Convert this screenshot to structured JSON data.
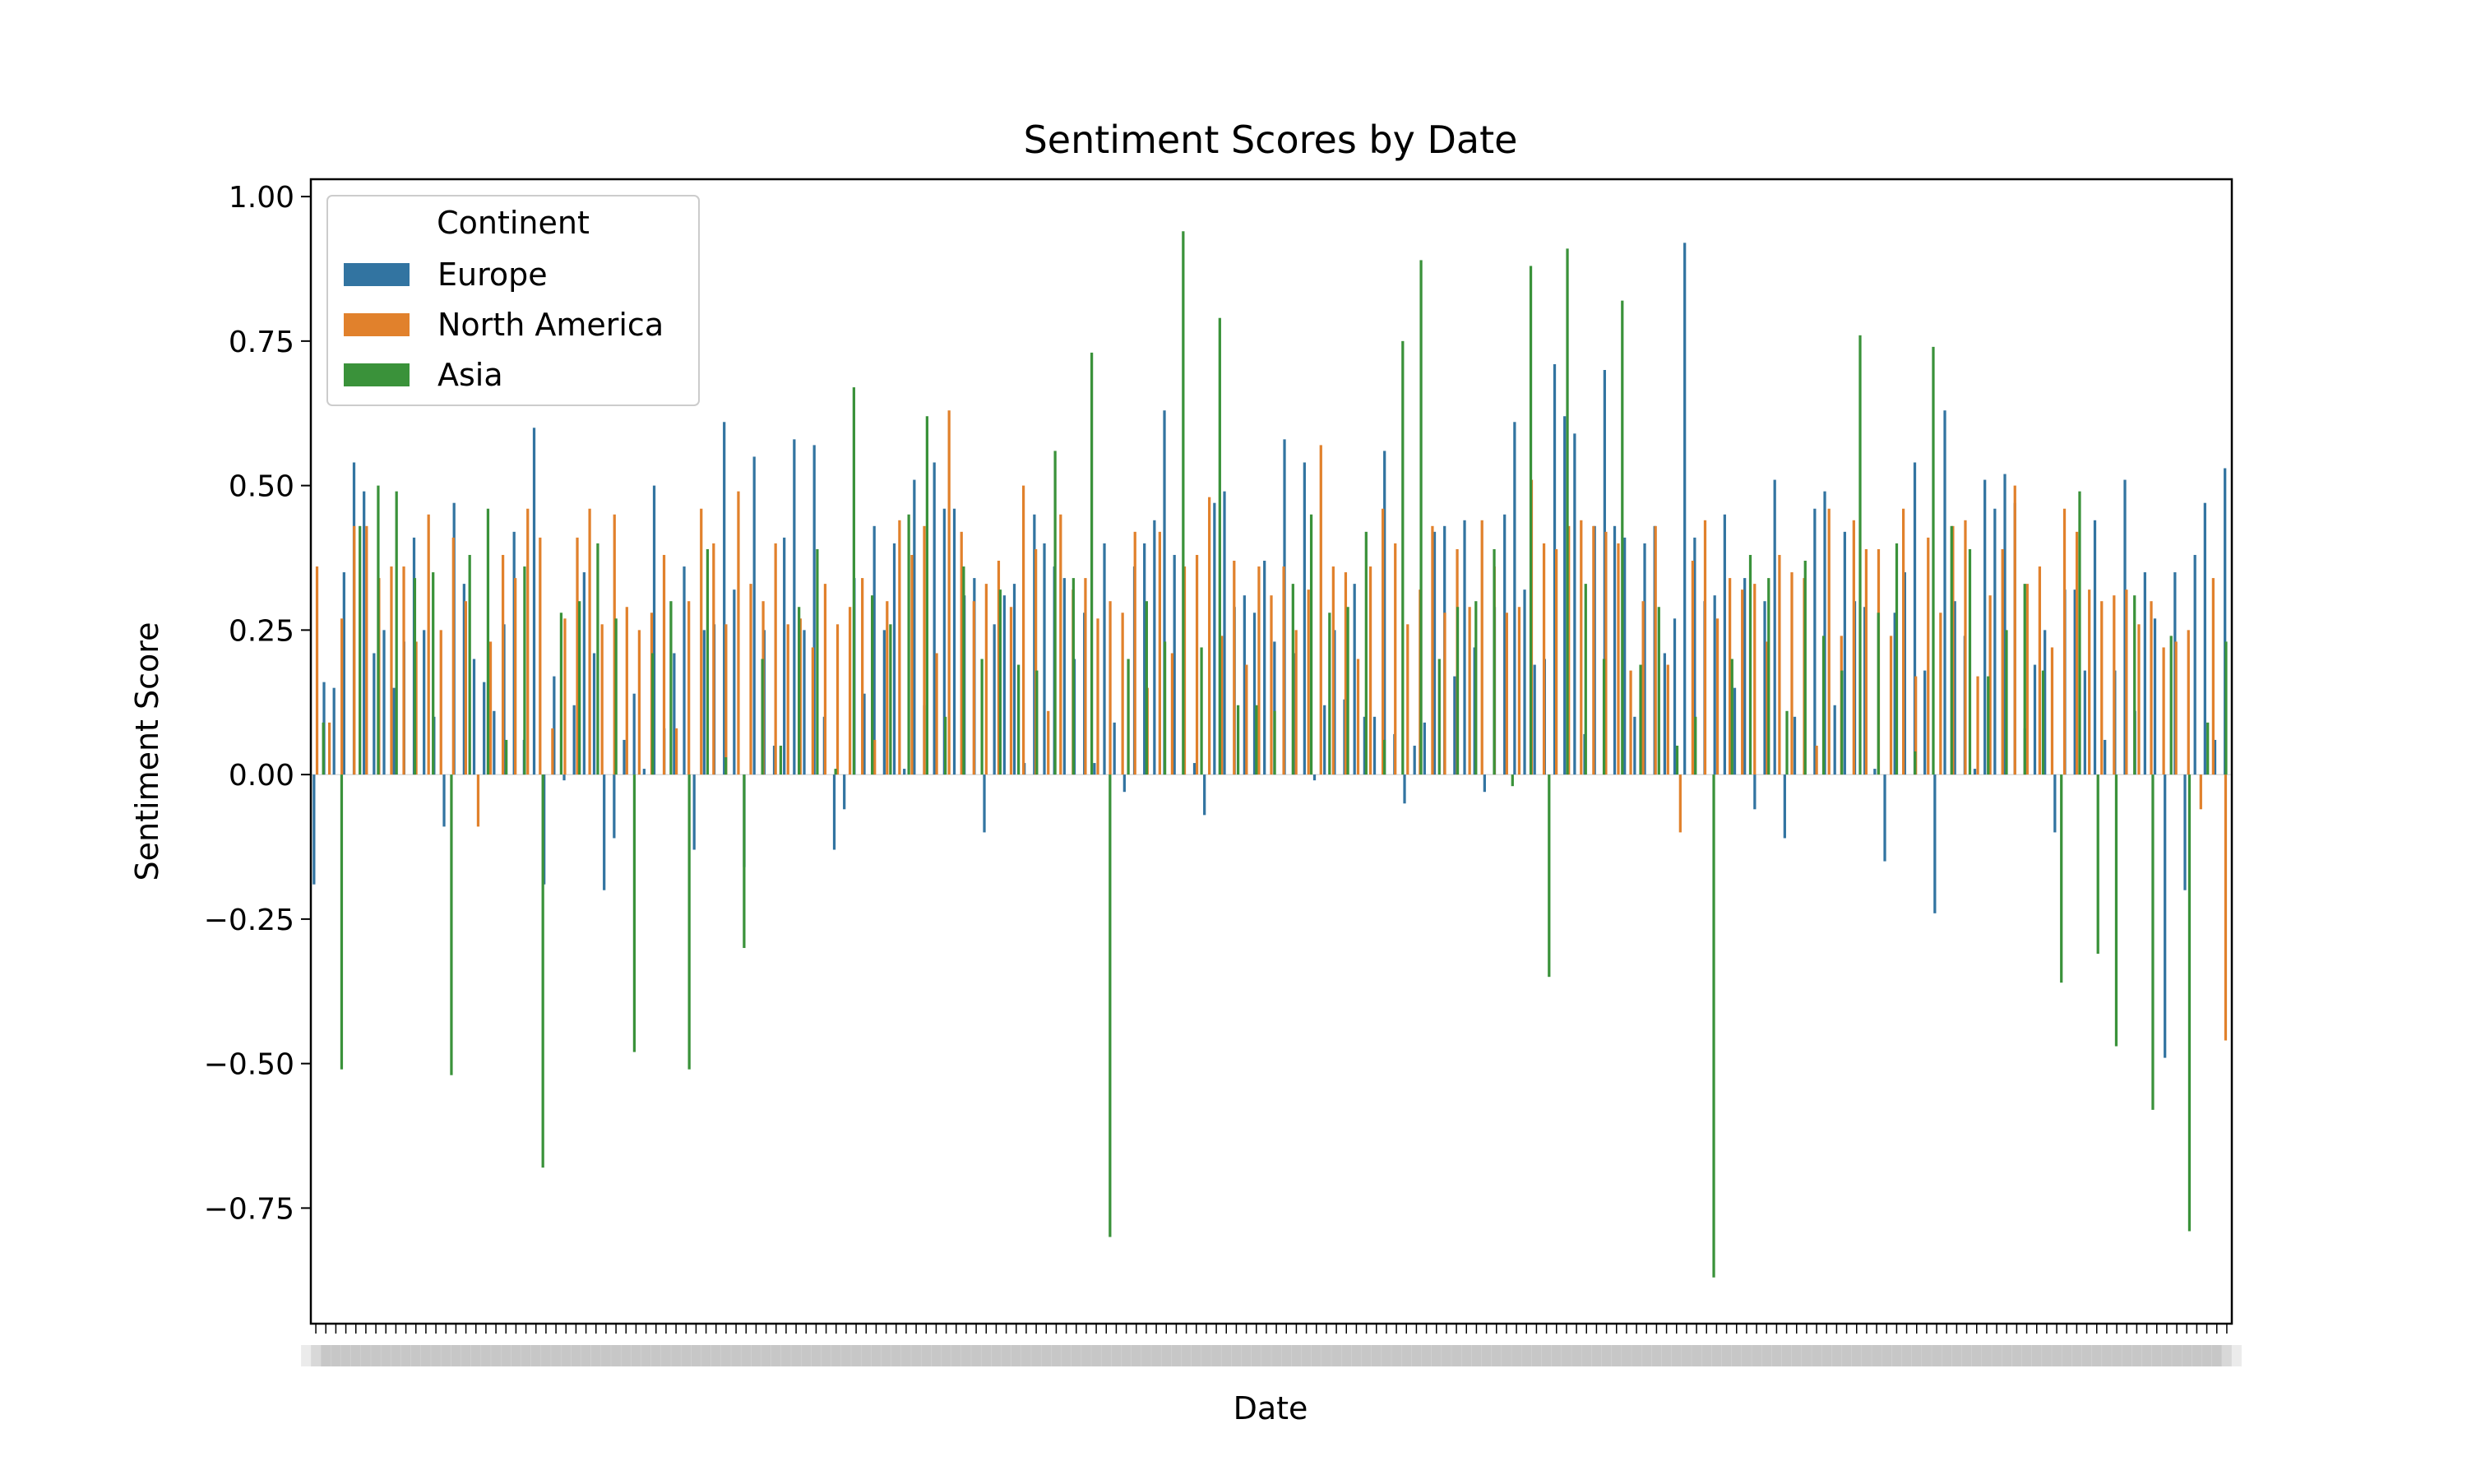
{
  "chart_data": {
    "type": "bar",
    "title": "Sentiment Scores by Date",
    "xlabel": "Date",
    "ylabel": "Sentiment Score",
    "ylim": [
      -0.95,
      1.03
    ],
    "yticks": [
      -0.75,
      -0.5,
      -0.25,
      0.0,
      0.25,
      0.5,
      0.75,
      1.0
    ],
    "ytick_labels": [
      "−0.75",
      "−0.50",
      "−0.25",
      "0.00",
      "0.25",
      "0.50",
      "0.75",
      "1.00"
    ],
    "grid": false,
    "legend": {
      "title": "Continent",
      "placement": "top-left",
      "entries": [
        "Europe",
        "North America",
        "Asia"
      ]
    },
    "x_tick_labels_note": "overlapping date labels, unreadable",
    "series": [
      {
        "name": "Europe",
        "color": "#3274a1",
        "values": [
          -0.19,
          0.16,
          0.15,
          0.35,
          0.54,
          0.49,
          0.21,
          0.25,
          0.15,
          0.23,
          0.41,
          0.25,
          0.1,
          -0.09,
          0.47,
          0.33,
          0.2,
          0.16,
          0.11,
          0.26,
          0.42,
          0.06,
          0.6,
          -0.19,
          0.17,
          -0.01,
          0.12,
          0.35,
          0.21,
          -0.2,
          -0.11,
          0.06,
          0.14,
          0.01,
          0.5,
          0.08,
          0.21,
          0.36,
          -0.13,
          0.25,
          0.26,
          0.61,
          0.32,
          -0.16,
          0.55,
          0.25,
          0.05,
          0.41,
          0.58,
          0.25,
          0.57,
          0.1,
          -0.13,
          -0.06,
          0.34,
          0.14,
          0.43,
          0.25,
          0.4,
          0.01,
          0.51,
          0.12,
          0.54,
          0.46,
          0.46,
          0.31,
          0.34,
          -0.1,
          0.26,
          0.31,
          0.33,
          0.02,
          0.45,
          0.4,
          0.36,
          0.34,
          0.2,
          0.28,
          0.02,
          0.4,
          0.09,
          -0.03,
          0.36,
          0.4,
          0.44,
          0.63,
          0.38,
          0.29,
          0.02,
          -0.07,
          0.47,
          0.49,
          0.29,
          0.31,
          0.28,
          0.37,
          0.23,
          0.58,
          0.21,
          0.54,
          -0.01,
          0.12,
          0.25,
          0.13,
          0.33,
          0.1,
          0.1,
          0.56,
          0.07,
          -0.05,
          0.05,
          0.09,
          0.42,
          0.43,
          0.17,
          0.44,
          0.22,
          -0.03,
          0.29,
          0.45,
          0.61,
          0.32,
          0.19,
          0.2,
          0.71,
          0.62,
          0.59,
          0.07,
          0.43,
          0.7,
          0.43,
          0.41,
          0.1,
          0.4,
          0.43,
          0.21,
          0.27,
          0.92,
          0.41,
          0.3,
          0.31,
          0.45,
          0.15,
          0.34,
          -0.06,
          0.3,
          0.51,
          -0.11,
          0.1,
          0.29,
          0.46,
          0.49,
          0.12,
          0.42,
          0.3,
          0.29,
          0.01,
          -0.15,
          0.28,
          0.35,
          0.54,
          0.18,
          -0.24,
          0.63,
          0.3,
          0.24,
          0.01,
          0.51,
          0.46,
          0.52,
          0.47,
          0.08,
          0.19,
          0.25,
          -0.1,
          0.32,
          0.32,
          0.18,
          0.44,
          0.06,
          0.18,
          0.51,
          0.11,
          0.35,
          0.27,
          -0.49,
          0.35,
          -0.2,
          0.38,
          0.47,
          0.06,
          0.53
        ],
        "_note": "values estimated from bar heights"
      },
      {
        "name": "North America",
        "color": "#e1812c",
        "values": [
          0.36,
          0.09,
          0.27,
          0.43,
          0.43,
          0.34,
          0.36,
          0.36,
          0.23,
          0.45,
          0.25,
          0.41,
          0.3,
          -0.09,
          0.23,
          0.38,
          0.34,
          0.46,
          0.41,
          0.08,
          0.27,
          0.41,
          0.46,
          0.26,
          0.45,
          0.29,
          0.25,
          0.28,
          0.38,
          0.08,
          0.3,
          0.46,
          0.4,
          0.26,
          0.49,
          0.33,
          0.3,
          0.4,
          0.26,
          0.27,
          0.22,
          0.33,
          0.26,
          0.29,
          0.34,
          0.06,
          0.3,
          0.44,
          0.38,
          0.43,
          0.21,
          0.63,
          0.42,
          0.3,
          0.33,
          0.37,
          0.29,
          0.5,
          0.39,
          0.11,
          0.45,
          0.32,
          0.34,
          0.27,
          0.3,
          0.28,
          0.42,
          0.15,
          0.42,
          0.21,
          0.36,
          0.38,
          0.48,
          0.24,
          0.37,
          0.19,
          0.36,
          0.31,
          0.36,
          0.25,
          0.32,
          0.57,
          0.36,
          0.35,
          0.2,
          0.36,
          0.46,
          0.4,
          0.26,
          0.32,
          0.43,
          0.28,
          0.39,
          0.29,
          0.44,
          0.36,
          0.28,
          0.29,
          0.51,
          0.4,
          0.39,
          0.43,
          0.44,
          0.43,
          0.42,
          0.4,
          0.18,
          0.3,
          0.43,
          0.19,
          -0.1,
          0.37,
          0.44,
          0.27,
          0.34,
          0.32,
          0.33,
          0.23,
          0.38,
          0.35,
          0.34,
          0.05,
          0.46,
          0.24,
          0.44,
          0.39,
          0.39,
          0.24,
          0.46,
          0.17,
          0.41,
          0.28,
          0.43,
          0.44,
          0.17,
          0.31,
          0.39,
          0.5,
          0.33,
          0.36,
          0.22,
          0.46,
          0.42,
          0.32,
          0.3,
          0.31,
          0.32,
          0.26,
          0.3,
          0.22,
          0.23,
          0.25,
          -0.06,
          0.34,
          -0.46
        ]
      },
      {
        "name": "Asia",
        "color": "#3a923a",
        "values": [
          0.09,
          -0.51,
          0.43,
          0.5,
          0.49,
          0.34,
          0.35,
          -0.52,
          0.38,
          0.46,
          0.06,
          0.36,
          -0.68,
          0.28,
          0.3,
          0.4,
          0.27,
          -0.48,
          0.21,
          0.3,
          -0.51,
          0.39,
          0.03,
          -0.3,
          0.2,
          0.05,
          0.29,
          0.39,
          0.01,
          0.67,
          0.31,
          0.26,
          0.45,
          0.62,
          0.1,
          0.36,
          0.2,
          0.32,
          0.19,
          0.18,
          0.56,
          0.34,
          0.73,
          -0.8,
          0.2,
          0.3,
          0.23,
          0.94,
          0.22,
          0.79,
          0.12,
          0.12,
          0.11,
          0.33,
          0.45,
          0.28,
          0.29,
          0.42,
          0.06,
          0.75,
          0.89,
          0.2,
          0.29,
          0.3,
          0.39,
          -0.02,
          0.88,
          -0.35,
          0.91,
          0.33,
          0.2,
          0.82,
          0.19,
          0.29,
          0.05,
          0.1,
          -0.87,
          0.2,
          0.38,
          0.34,
          0.11,
          0.37,
          0.24,
          0.18,
          0.76,
          0.28,
          0.4,
          0.04,
          0.74,
          0.43,
          0.39,
          0.17,
          0.25,
          0.33,
          0.18,
          -0.36,
          0.49,
          -0.31,
          -0.47,
          0.31,
          -0.58,
          0.24,
          -0.79,
          0.09,
          0.23
        ]
      }
    ]
  }
}
